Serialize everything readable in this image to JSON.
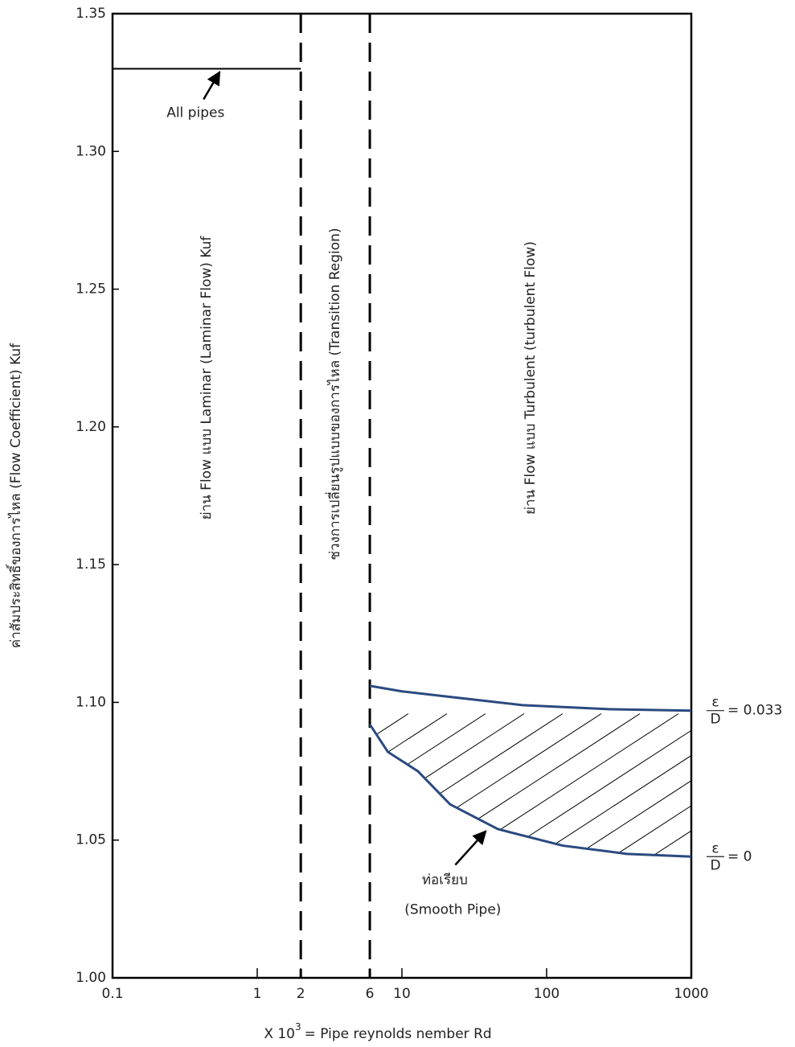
{
  "chart_data": {
    "type": "line",
    "y_label": "ค่าสัมประสิทธิ์ของการไหล (Flow Coefficient) Kuf",
    "x_label": {
      "base": "X 10",
      "sup": "3",
      "text": "= Pipe reynolds nember Rd"
    },
    "xlim": [
      0.1,
      1000
    ],
    "xscale": "log",
    "xticks": [
      0.1,
      1,
      2,
      6,
      10,
      100,
      1000
    ],
    "ylim": [
      1.0,
      1.35
    ],
    "yticks": [
      {
        "value": 1.0,
        "label": "1.00"
      },
      {
        "value": 1.05,
        "label": "1.05"
      },
      {
        "value": 1.1,
        "label": "1.10"
      },
      {
        "value": 1.15,
        "label": "1.15"
      },
      {
        "value": 1.2,
        "label": "1.20"
      },
      {
        "value": 1.25,
        "label": "1.25"
      },
      {
        "value": 1.3,
        "label": "1.30"
      },
      {
        "value": 1.35,
        "label": "1.35"
      }
    ],
    "vlines": [
      2,
      6
    ],
    "regions": [
      "ย่าน Flow แบบ Laminar (Laminar Flow) Kuf",
      "ช่วงการเปลี่ยนรูปแบบของการไหล (Transition Region)",
      "ย่าน Flow แบบ Turbulent (turbulent Flow)"
    ],
    "series": [
      {
        "color": "#000000",
        "x": [
          0.1,
          2
        ],
        "values": [
          1.33,
          1.33
        ],
        "annotation": "All pipes"
      },
      {
        "color": "#2a4a7f",
        "x": [
          6,
          10,
          21.5,
          68,
          278,
          1000
        ],
        "values": [
          1.106,
          1.104,
          1.102,
          1.099,
          1.0975,
          1.097
        ],
        "label": {
          "num": "ε",
          "den": "D",
          "text": "= 0.033"
        }
      },
      {
        "color": "#2a4a7f",
        "x": [
          6,
          8,
          12.9,
          21.5,
          46,
          129,
          359,
          1000
        ],
        "values": [
          1.092,
          1.082,
          1.075,
          1.063,
          1.054,
          1.048,
          1.045,
          1.044
        ],
        "label": {
          "num": "ε",
          "den": "D",
          "text": "= 0"
        },
        "annotation": [
          "ท่อเรียบ",
          "(Smooth Pipe)"
        ]
      }
    ]
  }
}
